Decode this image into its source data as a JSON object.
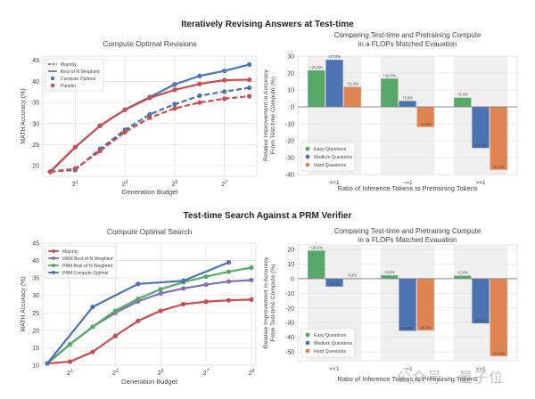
{
  "suptitles": [
    "Iteratively Revising Answers at Test-time",
    "Test-time Search Against a PRM Verifier"
  ],
  "watermark": "公众号 · 量子位",
  "chart_data": [
    {
      "type": "line",
      "title": "Compute Optimal Revisions",
      "xlabel": "Generation Budget",
      "ylabel": "MATH Accuracy (%)",
      "x_log2": [
        0,
        1,
        2,
        3,
        4,
        5,
        6,
        7,
        8
      ],
      "xticks": [
        {
          "v": 1,
          "label": "2^1"
        },
        {
          "v": 3,
          "label": "2^3"
        },
        {
          "v": 5,
          "label": "2^5"
        },
        {
          "v": 7,
          "label": "2^7"
        }
      ],
      "xlim": [
        -0.3,
        8.3
      ],
      "ylim": [
        17.5,
        46
      ],
      "yticks": [
        20,
        25,
        30,
        35,
        40,
        45
      ],
      "grid": true,
      "legend": "top-left",
      "legend_entries": [
        {
          "label": "Majority",
          "style": "dashed",
          "color": "#444444"
        },
        {
          "label": "Best-of-N Weighted",
          "style": "solid",
          "color": "#444444"
        },
        {
          "label": "Compute Optimal",
          "style": "marker",
          "color": "#4c72b0"
        },
        {
          "label": "Parallel",
          "style": "marker",
          "color": "#c44e52"
        }
      ],
      "series": [
        {
          "name": "Compute Optimal (Best-of-N Weighted)",
          "color": "#4c72b0",
          "dash": false,
          "values": [
            18.6,
            24.4,
            29.5,
            33.3,
            36.3,
            39.3,
            41.3,
            42.5,
            44.0
          ]
        },
        {
          "name": "Parallel (Best-of-N Weighted)",
          "color": "#c44e52",
          "dash": false,
          "values": [
            18.6,
            24.4,
            29.5,
            33.3,
            36.1,
            38.0,
            39.4,
            40.3,
            40.4
          ]
        },
        {
          "name": "Compute Optimal (Majority)",
          "color": "#4c72b0",
          "dash": true,
          "values": [
            18.6,
            19.0,
            24.0,
            28.5,
            32.2,
            34.6,
            36.6,
            37.6,
            38.5
          ]
        },
        {
          "name": "Parallel (Majority)",
          "color": "#c44e52",
          "dash": true,
          "values": [
            18.6,
            19.3,
            23.5,
            28.0,
            31.4,
            33.6,
            35.0,
            35.9,
            36.5
          ]
        }
      ]
    },
    {
      "type": "bar",
      "title": "Comparing Test-time and Pretraining Compute\nin a FLOPs Matched Evauation",
      "xlabel": "Ratio of Inference Tokens to Pretraining Tokens",
      "ylabel": "Relative Improvement in Accuracy\nFrom Test-time Compute (%)",
      "categories": [
        "<<1",
        "~=1",
        ">>1"
      ],
      "ylim": [
        -40,
        30
      ],
      "yticks": [
        -40,
        -30,
        -20,
        -10,
        0,
        10,
        20,
        30
      ],
      "legend": "bottom-left",
      "series": [
        {
          "name": "Easy Questions",
          "color": "#55a868",
          "values": [
            21.6,
            16.7,
            5.4
          ],
          "labels": [
            "+21.6%",
            "+16.7%",
            "+5.4%"
          ]
        },
        {
          "name": "Medium Questions",
          "color": "#4c72b0",
          "values": [
            27.8,
            3.5,
            -24.3
          ],
          "labels": [
            "+27.8%",
            "+3.5%",
            "-24.3%"
          ]
        },
        {
          "name": "Hard Questions",
          "color": "#dd8452",
          "values": [
            11.8,
            -11.9,
            -37.2
          ],
          "labels": [
            "+11.8%",
            "-11.9%",
            "-37.2%"
          ]
        }
      ]
    },
    {
      "type": "line",
      "title": "Compute Optimal Search",
      "xlabel": "Generation Budget",
      "ylabel": "MATH Accuracy (%)",
      "x_log2": [
        0,
        1,
        2,
        3,
        4,
        5,
        6,
        7,
        8,
        9
      ],
      "xticks": [
        {
          "v": 1,
          "label": "2^1"
        },
        {
          "v": 3,
          "label": "2^3"
        },
        {
          "v": 5,
          "label": "2^5"
        },
        {
          "v": 7,
          "label": "2^7"
        },
        {
          "v": 9,
          "label": "2^9"
        }
      ],
      "xlim": [
        -0.2,
        9.2
      ],
      "ylim": [
        10,
        45
      ],
      "yticks": [
        10,
        15,
        20,
        25,
        30,
        35,
        40,
        45
      ],
      "grid": true,
      "legend": "top-left",
      "series": [
        {
          "name": "Majority",
          "color": "#c44e52",
          "x": [
            0,
            1,
            2,
            3,
            4,
            5,
            6,
            7,
            8,
            9
          ],
          "values": [
            10.5,
            11.0,
            13.8,
            18.4,
            22.7,
            25.6,
            27.5,
            28.2,
            28.6,
            28.8
          ]
        },
        {
          "name": "ORM Best-of-N Weighted",
          "color": "#8172b2",
          "x": [
            0,
            1,
            2,
            3,
            4,
            5,
            6,
            7,
            8,
            9
          ],
          "values": [
            10.5,
            16.0,
            21.0,
            25.0,
            28.3,
            30.6,
            32.0,
            33.1,
            34.0,
            34.4
          ]
        },
        {
          "name": "PRM Best-of-N Weighted",
          "color": "#55a868",
          "x": [
            0,
            1,
            2,
            3,
            4,
            5,
            6,
            7,
            8,
            9
          ],
          "values": [
            10.5,
            16.0,
            21.0,
            25.6,
            29.0,
            31.8,
            33.8,
            35.4,
            36.8,
            38.0
          ]
        },
        {
          "name": "PRM Compute Optimal",
          "color": "#4c72b0",
          "x": [
            0,
            2,
            4,
            6,
            8
          ],
          "values": [
            10.5,
            26.7,
            33.3,
            34.2,
            39.5
          ]
        }
      ]
    },
    {
      "type": "bar",
      "title": "Comparing Test-time and Pretraining Compute\nin a FLOPs Matched Evauation",
      "xlabel": "Ratio of Inference Tokens to Pretraining Tokens",
      "ylabel": "Relative Improvement in Accuracy\nFrom Test-time Compute (%)",
      "categories": [
        "<<1",
        "~=1",
        ">>1"
      ],
      "ylim": [
        -56,
        23
      ],
      "yticks": [
        -50,
        -40,
        -30,
        -20,
        -10,
        0,
        10,
        20
      ],
      "legend": "bottom-left",
      "series": [
        {
          "name": "Easy Questions",
          "color": "#55a868",
          "values": [
            19.1,
            2.2,
            2.0
          ],
          "labels": [
            "+19.1%",
            "+2.2%",
            "+2.0%"
          ]
        },
        {
          "name": "Medium Questions",
          "color": "#4c72b0",
          "values": [
            -5.4,
            -35.6,
            -30.5
          ],
          "labels": [
            "-5.4%",
            "-35.6%",
            "-30.5%"
          ]
        },
        {
          "name": "Hard Questions",
          "color": "#dd8452",
          "values": [
            0.2,
            -35.3,
            -52.9
          ],
          "labels": [
            "0.2%",
            "-35.3%",
            "-52.9%"
          ]
        }
      ]
    }
  ]
}
